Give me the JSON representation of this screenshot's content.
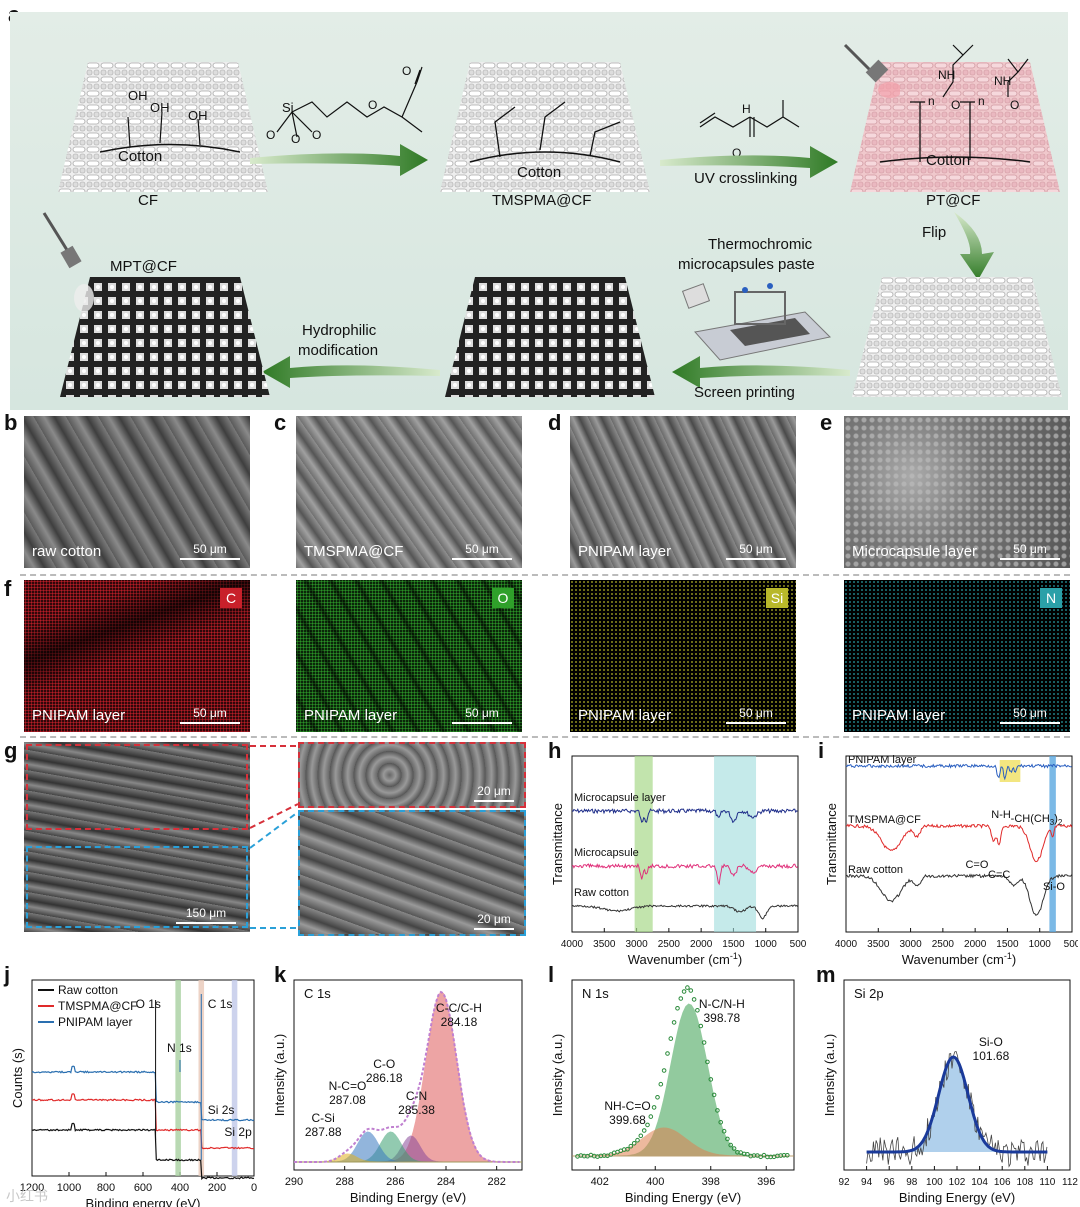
{
  "panel_labels": {
    "a": "a",
    "b": "b",
    "c": "c",
    "d": "d",
    "e": "e",
    "f": "f",
    "g": "g",
    "h": "h",
    "i": "i",
    "j": "j",
    "k": "k",
    "l": "l",
    "m": "m"
  },
  "scheme": {
    "cf_label": "CF",
    "tmspma_label": "TMSPMA@CF",
    "pt_label": "PT@CF",
    "mpt_label": "MPT@CF",
    "cotton": "Cotton",
    "oh": "OH",
    "uv": "UV crosslinking",
    "flip": "Flip",
    "thermo_line1": "Thermochromic",
    "thermo_line2": "microcapsules paste",
    "screen": "Screen printing",
    "hydro_line1": "Hydrophilic",
    "hydro_line2": "modification",
    "si": "Si",
    "o": "O",
    "nh": "NH",
    "n": "n",
    "h": "H",
    "n_atom": "N"
  },
  "sem_row": [
    {
      "caption": "raw cotton",
      "scale": "50 μm"
    },
    {
      "caption": "TMSPMA@CF",
      "scale": "50 μm"
    },
    {
      "caption": "PNIPAM layer",
      "scale": "50 μm"
    },
    {
      "caption": "Microcapsule layer",
      "scale": "50 μm"
    }
  ],
  "eds_row": [
    {
      "element": "C",
      "caption": "PNIPAM layer",
      "scale": "50 μm",
      "color": "#c8202a"
    },
    {
      "element": "O",
      "caption": "PNIPAM layer",
      "scale": "50 μm",
      "color": "#2fa02a"
    },
    {
      "element": "Si",
      "caption": "PNIPAM layer",
      "scale": "50 μm",
      "color": "#b8b82a"
    },
    {
      "element": "N",
      "caption": "PNIPAM layer",
      "scale": "50 μm",
      "color": "#2aa0a8"
    }
  ],
  "cross_section": {
    "main_scale": "150 μm",
    "zoom1_scale": "20 μm",
    "zoom2_scale": "20 μm"
  },
  "chart_data": [
    {
      "type": "line",
      "panel": "h",
      "xlabel": "Wavenumber (cm",
      "xlabel_sup": "-1",
      "xlabel_end": ")",
      "ylabel": "Transmittance",
      "xlim": [
        4000,
        500
      ],
      "x_ticks": [
        "4000",
        "3500",
        "3000",
        "2500",
        "2000",
        "1500",
        "1000",
        "500"
      ],
      "series": [
        {
          "name": "Microcapsule layer",
          "color": "#1f2e8a"
        },
        {
          "name": "Microcapsule",
          "color": "#e0307a"
        },
        {
          "name": "Raw cotton",
          "color": "#333333"
        }
      ]
    },
    {
      "type": "line",
      "panel": "i",
      "xlabel": "Wavenumber (cm",
      "xlabel_sup": "-1",
      "xlabel_end": ")",
      "ylabel": "Transmittance",
      "xlim": [
        4000,
        500
      ],
      "x_ticks": [
        "4000",
        "3500",
        "3000",
        "2500",
        "2000",
        "1500",
        "1000",
        "500"
      ],
      "series": [
        {
          "name": "PNIPAM layer",
          "color": "#2a5fc0"
        },
        {
          "name": "TMSPMA@CF",
          "color": "#e02a2a"
        },
        {
          "name": "Raw cotton",
          "color": "#333333"
        }
      ],
      "annotations": [
        "N-H",
        "-CH(CH",
        "3",
        ")",
        "2",
        "C=O",
        "C=C",
        "Si-O"
      ]
    },
    {
      "type": "line",
      "panel": "j",
      "xlabel": "Binding energy (eV)",
      "ylabel": "Counts (s)",
      "xlim": [
        1200,
        0
      ],
      "x_ticks": [
        "1200",
        "1000",
        "800",
        "600",
        "400",
        "200",
        "0"
      ],
      "series": [
        {
          "name": "Raw cotton",
          "color": "#111111"
        },
        {
          "name": "TMSPMA@CF",
          "color": "#e02a2a"
        },
        {
          "name": "PNIPAM layer",
          "color": "#2a6fb0"
        }
      ],
      "annotations": [
        "O 1s",
        "N 1s",
        "C 1s",
        "Si 2s",
        "Si 2p"
      ]
    },
    {
      "type": "line",
      "panel": "k",
      "title": "C 1s",
      "xlabel": "Binding Energy (eV)",
      "ylabel": "Intensity (a.u.)",
      "xlim": [
        290,
        281
      ],
      "x_ticks": [
        "290",
        "288",
        "286",
        "284",
        "282"
      ],
      "peaks": [
        {
          "label": "C-C/C-H",
          "center": 284.18,
          "color": "#e05a5a"
        },
        {
          "label": "C-N",
          "center": 285.38,
          "color": "#8a4a9a"
        },
        {
          "label": "C-O",
          "center": 286.18,
          "color": "#3aa070"
        },
        {
          "label": "N-C=O",
          "center": 287.08,
          "color": "#3a7ac0"
        },
        {
          "label": "C-Si",
          "center": 287.88,
          "color": "#e0b020"
        }
      ]
    },
    {
      "type": "line",
      "panel": "l",
      "title": "N 1s",
      "xlabel": "Binding Energy (eV)",
      "ylabel": "Intensity (a.u.)",
      "xlim": [
        403,
        395
      ],
      "x_ticks": [
        "402",
        "400",
        "398",
        "396"
      ],
      "peaks": [
        {
          "label": "N-C/N-H",
          "center": 398.78,
          "color": "#3aa050"
        },
        {
          "label": "NH-C=O",
          "center": 399.68,
          "color": "#e08050"
        }
      ]
    },
    {
      "type": "line",
      "panel": "m",
      "title": "Si 2p",
      "xlabel": "Binding Energy (eV)",
      "ylabel": "Intensity (a.u.)",
      "xlim": [
        92,
        112
      ],
      "x_ticks": [
        "92",
        "94",
        "96",
        "98",
        "100",
        "102",
        "104",
        "106",
        "108",
        "110",
        "112"
      ],
      "peaks": [
        {
          "label": "Si-O",
          "center": 101.68,
          "color": "#3a8ad0"
        }
      ]
    }
  ],
  "watermark": "小红书"
}
